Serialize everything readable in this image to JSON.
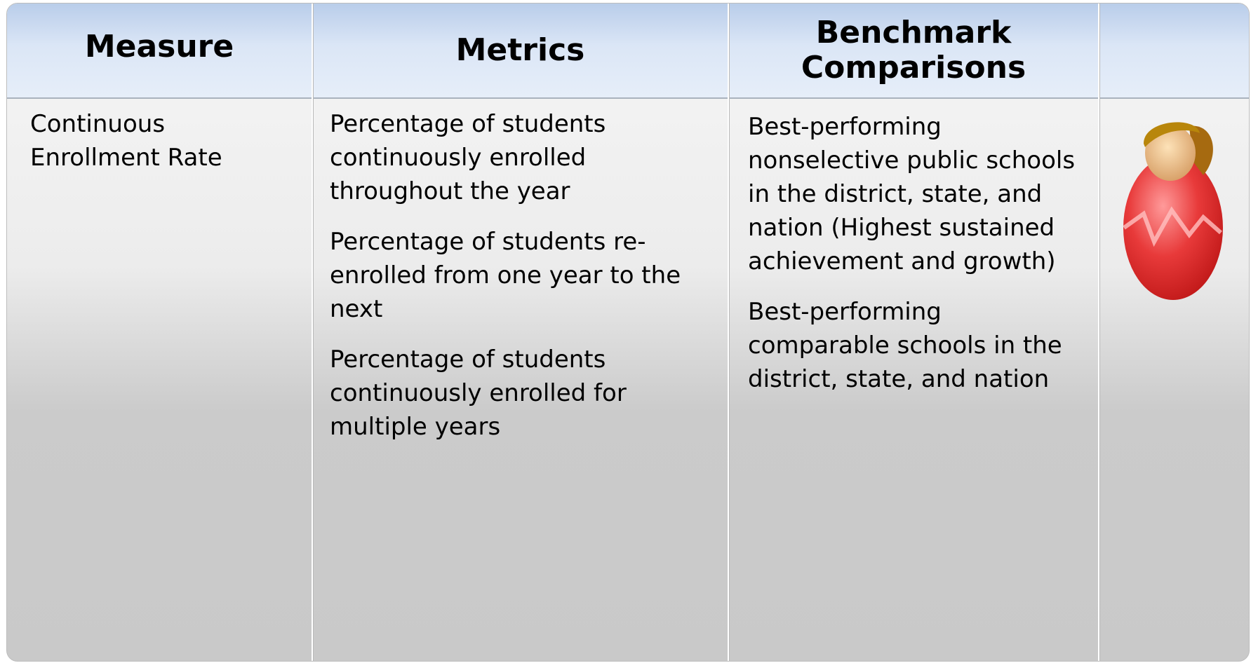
{
  "table": {
    "headers": [
      "Measure",
      "Metrics",
      "Benchmark Comparisons"
    ],
    "rows": [
      {
        "measure": "Continuous Enrollment Rate",
        "metrics": [
          "Percentage of students continuously enrolled throughout the year",
          "Percentage of students re-enrolled from one year to the next",
          "Percentage of students continuously enrolled for multiple years"
        ],
        "benchmarks": [
          "Best-performing nonselective public schools in the district, state, and nation (Highest sustained achievement and growth)",
          "Best-performing comparable schools in the district, state, and nation"
        ]
      }
    ]
  }
}
